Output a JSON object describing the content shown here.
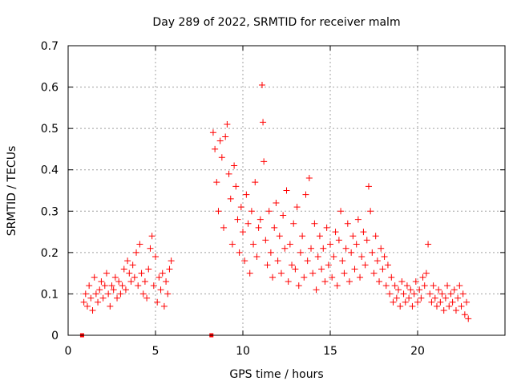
{
  "chart_data": {
    "type": "scatter",
    "title": "Day 289 of 2022, SRMTID for receiver malm",
    "xlabel": "GPS time / hours",
    "ylabel": "SRMTID / TECUs",
    "xlim": [
      0,
      25
    ],
    "ylim": [
      0,
      0.7
    ],
    "xticks": [
      0,
      5,
      10,
      15,
      20
    ],
    "yticks": [
      0,
      0.1,
      0.2,
      0.3,
      0.4,
      0.5,
      0.6,
      0.7
    ],
    "xtick_labels": [
      "0",
      "5",
      "10",
      "15",
      "20"
    ],
    "ytick_labels": [
      "0",
      "0.1",
      "0.2",
      "0.3",
      "0.4",
      "0.5",
      "0.6",
      "0.7"
    ],
    "grid": true,
    "marker": "+",
    "color": "#ff0000",
    "series": [
      {
        "name": "SRMTID",
        "points": [
          [
            0.8,
            0.0
          ],
          [
            8.2,
            0.0
          ],
          [
            0.9,
            0.08
          ],
          [
            1.0,
            0.1
          ],
          [
            1.1,
            0.07
          ],
          [
            1.2,
            0.12
          ],
          [
            1.3,
            0.09
          ],
          [
            1.4,
            0.06
          ],
          [
            1.5,
            0.14
          ],
          [
            1.6,
            0.1
          ],
          [
            1.7,
            0.08
          ],
          [
            1.8,
            0.11
          ],
          [
            1.9,
            0.13
          ],
          [
            2.0,
            0.09
          ],
          [
            2.1,
            0.12
          ],
          [
            2.2,
            0.15
          ],
          [
            2.3,
            0.1
          ],
          [
            2.4,
            0.07
          ],
          [
            2.5,
            0.12
          ],
          [
            2.6,
            0.11
          ],
          [
            2.7,
            0.14
          ],
          [
            2.8,
            0.09
          ],
          [
            2.9,
            0.13
          ],
          [
            3.0,
            0.1
          ],
          [
            3.1,
            0.12
          ],
          [
            3.2,
            0.16
          ],
          [
            3.3,
            0.11
          ],
          [
            3.4,
            0.18
          ],
          [
            3.5,
            0.15
          ],
          [
            3.6,
            0.13
          ],
          [
            3.7,
            0.17
          ],
          [
            3.8,
            0.14
          ],
          [
            3.9,
            0.2
          ],
          [
            4.0,
            0.12
          ],
          [
            4.1,
            0.22
          ],
          [
            4.2,
            0.15
          ],
          [
            4.3,
            0.1
          ],
          [
            4.4,
            0.13
          ],
          [
            4.5,
            0.09
          ],
          [
            4.6,
            0.16
          ],
          [
            4.7,
            0.21
          ],
          [
            4.8,
            0.24
          ],
          [
            4.9,
            0.12
          ],
          [
            5.0,
            0.19
          ],
          [
            5.1,
            0.08
          ],
          [
            5.2,
            0.14
          ],
          [
            5.3,
            0.11
          ],
          [
            5.4,
            0.15
          ],
          [
            5.5,
            0.07
          ],
          [
            5.6,
            0.13
          ],
          [
            5.7,
            0.1
          ],
          [
            5.8,
            0.16
          ],
          [
            5.9,
            0.18
          ],
          [
            8.3,
            0.49
          ],
          [
            8.4,
            0.45
          ],
          [
            8.5,
            0.37
          ],
          [
            8.6,
            0.3
          ],
          [
            8.7,
            0.47
          ],
          [
            8.8,
            0.43
          ],
          [
            8.9,
            0.26
          ],
          [
            9.0,
            0.48
          ],
          [
            9.1,
            0.51
          ],
          [
            9.2,
            0.39
          ],
          [
            9.3,
            0.33
          ],
          [
            9.4,
            0.22
          ],
          [
            9.5,
            0.41
          ],
          [
            9.6,
            0.36
          ],
          [
            9.7,
            0.28
          ],
          [
            9.8,
            0.2
          ],
          [
            9.9,
            0.31
          ],
          [
            10.0,
            0.25
          ],
          [
            10.1,
            0.18
          ],
          [
            10.2,
            0.34
          ],
          [
            10.3,
            0.27
          ],
          [
            10.4,
            0.15
          ],
          [
            10.5,
            0.3
          ],
          [
            10.6,
            0.22
          ],
          [
            10.7,
            0.37
          ],
          [
            10.8,
            0.19
          ],
          [
            10.9,
            0.26
          ],
          [
            11.0,
            0.28
          ],
          [
            11.1,
            0.605
          ],
          [
            11.15,
            0.515
          ],
          [
            11.2,
            0.42
          ],
          [
            11.3,
            0.23
          ],
          [
            11.4,
            0.17
          ],
          [
            11.5,
            0.3
          ],
          [
            11.6,
            0.2
          ],
          [
            11.7,
            0.14
          ],
          [
            11.8,
            0.26
          ],
          [
            11.9,
            0.32
          ],
          [
            12.0,
            0.18
          ],
          [
            12.1,
            0.24
          ],
          [
            12.2,
            0.15
          ],
          [
            12.3,
            0.29
          ],
          [
            12.4,
            0.21
          ],
          [
            12.5,
            0.35
          ],
          [
            12.6,
            0.13
          ],
          [
            12.7,
            0.22
          ],
          [
            12.8,
            0.17
          ],
          [
            12.9,
            0.27
          ],
          [
            13.0,
            0.16
          ],
          [
            13.1,
            0.31
          ],
          [
            13.2,
            0.12
          ],
          [
            13.3,
            0.2
          ],
          [
            13.4,
            0.24
          ],
          [
            13.5,
            0.14
          ],
          [
            13.6,
            0.34
          ],
          [
            13.7,
            0.18
          ],
          [
            13.8,
            0.38
          ],
          [
            13.9,
            0.21
          ],
          [
            14.0,
            0.15
          ],
          [
            14.1,
            0.27
          ],
          [
            14.2,
            0.11
          ],
          [
            14.3,
            0.19
          ],
          [
            14.4,
            0.24
          ],
          [
            14.5,
            0.16
          ],
          [
            14.6,
            0.21
          ],
          [
            14.7,
            0.13
          ],
          [
            14.8,
            0.26
          ],
          [
            14.9,
            0.17
          ],
          [
            15.0,
            0.22
          ],
          [
            15.1,
            0.14
          ],
          [
            15.2,
            0.19
          ],
          [
            15.3,
            0.25
          ],
          [
            15.4,
            0.12
          ],
          [
            15.5,
            0.23
          ],
          [
            15.6,
            0.3
          ],
          [
            15.7,
            0.18
          ],
          [
            15.8,
            0.15
          ],
          [
            15.9,
            0.21
          ],
          [
            16.0,
            0.27
          ],
          [
            16.1,
            0.13
          ],
          [
            16.2,
            0.2
          ],
          [
            16.3,
            0.24
          ],
          [
            16.4,
            0.16
          ],
          [
            16.5,
            0.22
          ],
          [
            16.6,
            0.28
          ],
          [
            16.7,
            0.14
          ],
          [
            16.8,
            0.19
          ],
          [
            16.9,
            0.25
          ],
          [
            17.0,
            0.17
          ],
          [
            17.1,
            0.23
          ],
          [
            17.2,
            0.36
          ],
          [
            17.3,
            0.3
          ],
          [
            17.4,
            0.2
          ],
          [
            17.5,
            0.15
          ],
          [
            17.6,
            0.24
          ],
          [
            17.7,
            0.18
          ],
          [
            17.8,
            0.13
          ],
          [
            17.9,
            0.21
          ],
          [
            18.0,
            0.16
          ],
          [
            18.1,
            0.19
          ],
          [
            18.2,
            0.12
          ],
          [
            18.3,
            0.17
          ],
          [
            18.4,
            0.1
          ],
          [
            18.5,
            0.14
          ],
          [
            18.6,
            0.08
          ],
          [
            18.7,
            0.12
          ],
          [
            18.8,
            0.09
          ],
          [
            18.9,
            0.11
          ],
          [
            19.0,
            0.07
          ],
          [
            19.1,
            0.13
          ],
          [
            19.2,
            0.1
          ],
          [
            19.3,
            0.08
          ],
          [
            19.4,
            0.12
          ],
          [
            19.5,
            0.09
          ],
          [
            19.6,
            0.11
          ],
          [
            19.7,
            0.07
          ],
          [
            19.8,
            0.1
          ],
          [
            19.9,
            0.13
          ],
          [
            20.0,
            0.08
          ],
          [
            20.1,
            0.11
          ],
          [
            20.2,
            0.09
          ],
          [
            20.3,
            0.14
          ],
          [
            20.4,
            0.12
          ],
          [
            20.5,
            0.15
          ],
          [
            20.6,
            0.22
          ],
          [
            20.7,
            0.1
          ],
          [
            20.8,
            0.08
          ],
          [
            20.9,
            0.12
          ],
          [
            21.0,
            0.09
          ],
          [
            21.1,
            0.07
          ],
          [
            21.2,
            0.11
          ],
          [
            21.3,
            0.08
          ],
          [
            21.4,
            0.1
          ],
          [
            21.5,
            0.06
          ],
          [
            21.6,
            0.09
          ],
          [
            21.7,
            0.12
          ],
          [
            21.8,
            0.07
          ],
          [
            21.9,
            0.1
          ],
          [
            22.0,
            0.08
          ],
          [
            22.1,
            0.11
          ],
          [
            22.2,
            0.06
          ],
          [
            22.3,
            0.09
          ],
          [
            22.4,
            0.12
          ],
          [
            22.5,
            0.07
          ],
          [
            22.6,
            0.1
          ],
          [
            22.7,
            0.05
          ],
          [
            22.8,
            0.08
          ],
          [
            22.9,
            0.04
          ]
        ]
      }
    ]
  }
}
